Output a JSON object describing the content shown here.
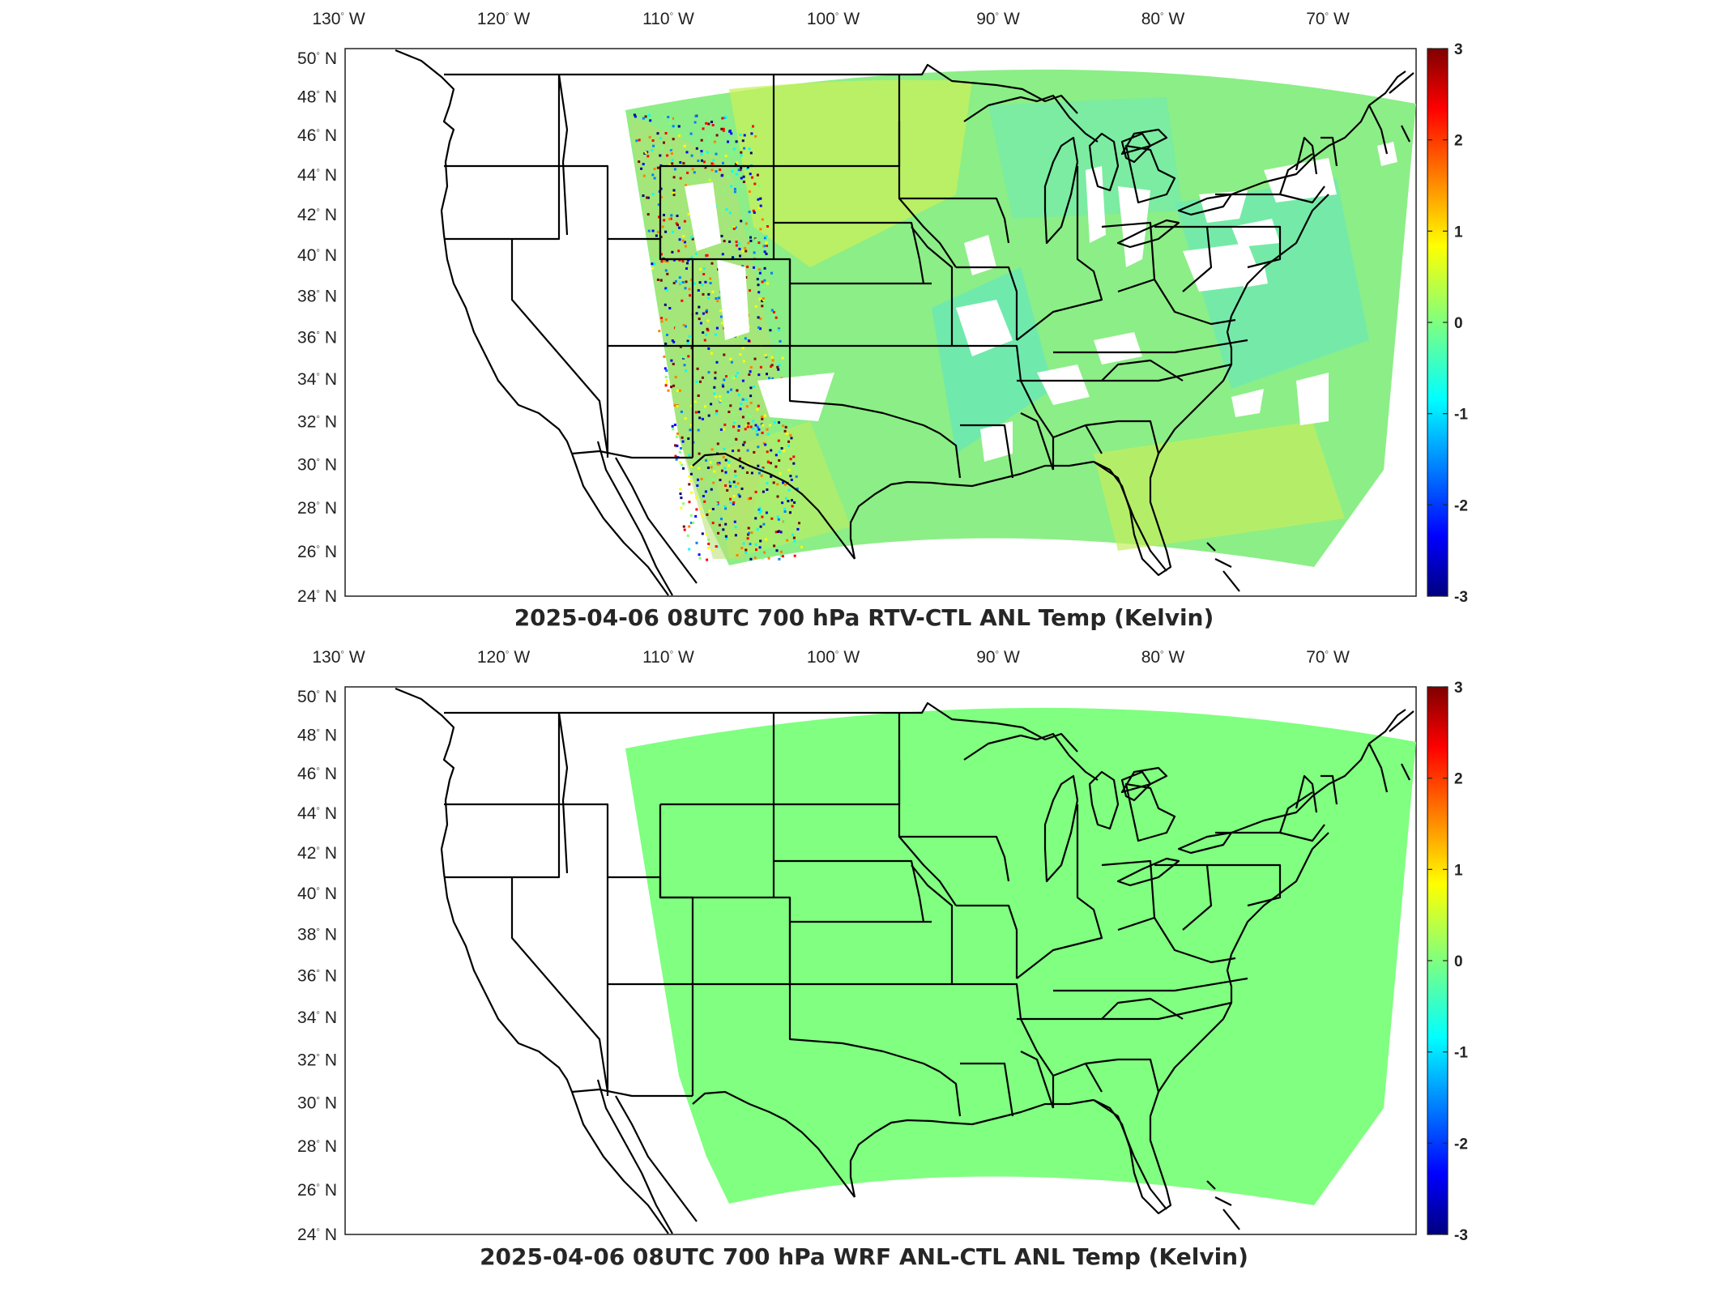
{
  "colorbar": {
    "ticks": [
      "3",
      "2",
      "1",
      "0",
      "-1",
      "-2",
      "-3"
    ],
    "range": [
      -3,
      3
    ],
    "colormap": "jet",
    "colors": [
      "#00007f",
      "#0000ff",
      "#007fff",
      "#00ffff",
      "#7fff7f",
      "#ffff00",
      "#ff7f00",
      "#ff0000",
      "#7f0000"
    ]
  },
  "axes": {
    "lon_ticks": [
      {
        "deg": "130",
        "dir": "W"
      },
      {
        "deg": "120",
        "dir": "W"
      },
      {
        "deg": "110",
        "dir": "W"
      },
      {
        "deg": "100",
        "dir": "W"
      },
      {
        "deg": "90",
        "dir": "W"
      },
      {
        "deg": "80",
        "dir": "W"
      },
      {
        "deg": "70",
        "dir": "W"
      }
    ],
    "lat_ticks": [
      {
        "deg": "50",
        "dir": "N"
      },
      {
        "deg": "48",
        "dir": "N"
      },
      {
        "deg": "46",
        "dir": "N"
      },
      {
        "deg": "44",
        "dir": "N"
      },
      {
        "deg": "42",
        "dir": "N"
      },
      {
        "deg": "40",
        "dir": "N"
      },
      {
        "deg": "38",
        "dir": "N"
      },
      {
        "deg": "36",
        "dir": "N"
      },
      {
        "deg": "34",
        "dir": "N"
      },
      {
        "deg": "32",
        "dir": "N"
      },
      {
        "deg": "30",
        "dir": "N"
      },
      {
        "deg": "28",
        "dir": "N"
      },
      {
        "deg": "26",
        "dir": "N"
      },
      {
        "deg": "24",
        "dir": "N"
      }
    ]
  },
  "panels": [
    {
      "title": "2025-04-06 08UTC 700 hPa RTV-CTL ANL Temp (Kelvin)",
      "field": "difference",
      "dominant_color": "#8ef07a",
      "has_missing_data": true
    },
    {
      "title": "2025-04-06 08UTC 700 hPa WRF ANL-CTL ANL Temp (Kelvin)",
      "field": "uniform_zero",
      "dominant_color": "#80ff80",
      "has_missing_data": false
    }
  ]
}
